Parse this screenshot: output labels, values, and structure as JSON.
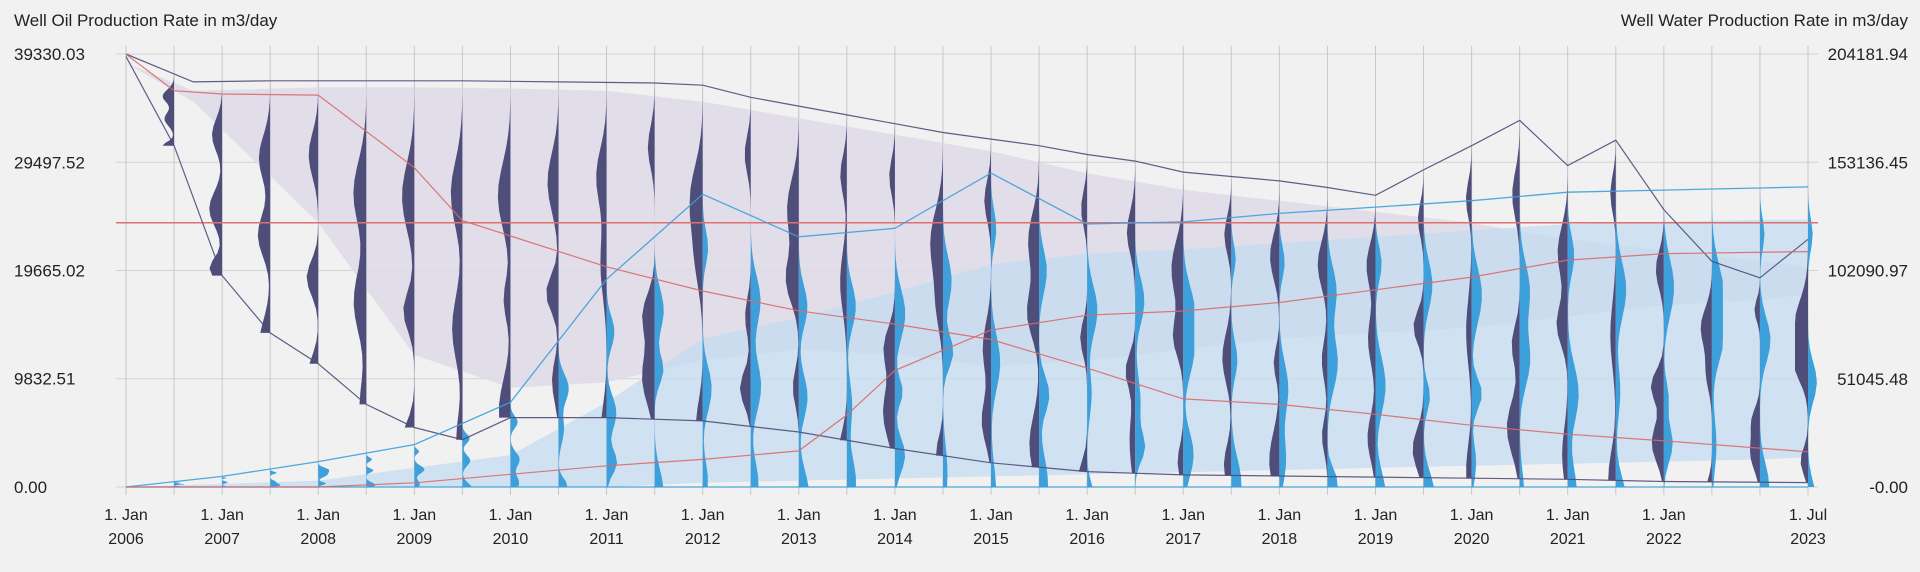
{
  "chart_data": {
    "type": "line",
    "left_axis": {
      "title": "Well Oil Production Rate in m3/day",
      "ticks": [
        0,
        9832.51,
        19665.02,
        29497.52,
        39330.03
      ],
      "tick_labels": [
        "0.00",
        "9832.51",
        "19665.02",
        "29497.52",
        "39330.03"
      ],
      "range": [
        0,
        39330.03
      ]
    },
    "right_axis": {
      "title": "Well Water Production Rate in m3/day",
      "ticks": [
        0,
        51045.48,
        102090.97,
        153136.45,
        204181.94
      ],
      "tick_labels": [
        "-0.00",
        "51045.48",
        "102090.97",
        "153136.45",
        "204181.94"
      ],
      "range": [
        0,
        204181.94
      ]
    },
    "x_axis": {
      "range": [
        2006.0,
        2023.5
      ],
      "ticks": [
        {
          "x": 2006,
          "line1": "1. Jan",
          "line2": "2006"
        },
        {
          "x": 2007,
          "line1": "1. Jan",
          "line2": "2007"
        },
        {
          "x": 2008,
          "line1": "1. Jan",
          "line2": "2008"
        },
        {
          "x": 2009,
          "line1": "1. Jan",
          "line2": "2009"
        },
        {
          "x": 2010,
          "line1": "1. Jan",
          "line2": "2010"
        },
        {
          "x": 2011,
          "line1": "1. Jan",
          "line2": "2011"
        },
        {
          "x": 2012,
          "line1": "1. Jan",
          "line2": "2012"
        },
        {
          "x": 2013,
          "line1": "1. Jan",
          "line2": "2013"
        },
        {
          "x": 2014,
          "line1": "1. Jan",
          "line2": "2014"
        },
        {
          "x": 2015,
          "line1": "1. Jan",
          "line2": "2015"
        },
        {
          "x": 2016,
          "line1": "1. Jan",
          "line2": "2016"
        },
        {
          "x": 2017,
          "line1": "1. Jan",
          "line2": "2017"
        },
        {
          "x": 2018,
          "line1": "1. Jan",
          "line2": "2018"
        },
        {
          "x": 2019,
          "line1": "1. Jan",
          "line2": "2019"
        },
        {
          "x": 2020,
          "line1": "1. Jan",
          "line2": "2020"
        },
        {
          "x": 2021,
          "line1": "1. Jan",
          "line2": "2021"
        },
        {
          "x": 2022,
          "line1": "1. Jan",
          "line2": "2022"
        },
        {
          "x": 2023.5,
          "line1": "1. Jul",
          "line2": "2023"
        }
      ]
    },
    "grid": true,
    "reference_line": {
      "y": 24000,
      "axis": "left",
      "color": "#e07070"
    },
    "colors": {
      "oil": "#4f4d7a",
      "oil_band": "#dedbe8",
      "water": "#3da0da",
      "water_band": "#c4dbf0",
      "median": "#d96a6a"
    },
    "series": [
      {
        "axis": "left",
        "kind": "oil_upper",
        "x": [
          2006,
          2006.7,
          2007.5,
          2008.5,
          2009.5,
          2010.5,
          2011.5,
          2012,
          2012.5,
          2013,
          2013.5,
          2014,
          2014.5,
          2015,
          2015.5,
          2016,
          2016.5,
          2017,
          2017.5,
          2018,
          2018.5,
          2019,
          2019.5,
          2020,
          2020.5,
          2021,
          2021.5,
          2022,
          2022.5,
          2023,
          2023.5
        ],
        "y": [
          39330,
          36800,
          36900,
          36900,
          36900,
          36800,
          36700,
          36500,
          35400,
          34600,
          33800,
          33000,
          32200,
          31600,
          31000,
          30200,
          29600,
          28600,
          28200,
          27800,
          27200,
          26500,
          28800,
          31000,
          33300,
          29200,
          31500,
          25200,
          20500,
          19000,
          22500
        ]
      },
      {
        "axis": "left",
        "kind": "oil_lower",
        "x": [
          2006,
          2006.5,
          2007,
          2007.5,
          2008,
          2008.5,
          2009,
          2009.5,
          2010,
          2011,
          2012,
          2013,
          2014,
          2015,
          2016,
          2017,
          2018,
          2019,
          2020,
          2021,
          2022,
          2023.5
        ],
        "y": [
          39100,
          31000,
          19200,
          14000,
          11200,
          7500,
          5400,
          4300,
          6300,
          6300,
          6000,
          5000,
          3500,
          2200,
          1400,
          1100,
          1000,
          900,
          800,
          700,
          500,
          400
        ]
      },
      {
        "axis": "left",
        "kind": "oil_median",
        "x": [
          2006,
          2006.5,
          2007,
          2008,
          2009,
          2009.5,
          2010,
          2011,
          2012,
          2013,
          2014,
          2015,
          2016,
          2017,
          2018,
          2019,
          2020,
          2021,
          2022,
          2023.5
        ],
        "y": [
          39300,
          36000,
          35700,
          35600,
          29000,
          24200,
          22800,
          20000,
          17800,
          16000,
          14800,
          13400,
          10800,
          8000,
          7500,
          6600,
          5600,
          4800,
          4200,
          3200
        ]
      },
      {
        "axis": "right",
        "kind": "water_upper",
        "x": [
          2006,
          2007,
          2008,
          2009,
          2010,
          2011,
          2012,
          2013,
          2014,
          2015,
          2016,
          2017,
          2018,
          2019,
          2020,
          2021,
          2022,
          2022.5,
          2023,
          2023.5
        ],
        "y": [
          0,
          5000,
          12000,
          20000,
          40000,
          98000,
          138000,
          118000,
          122000,
          148000,
          124000,
          125000,
          129000,
          132000,
          135000,
          139000,
          140000,
          140500,
          141000,
          141500
        ]
      },
      {
        "axis": "right",
        "kind": "water_lower",
        "x": [
          2006,
          2008,
          2010,
          2012,
          2014,
          2016,
          2018,
          2020,
          2023.5
        ],
        "y": [
          0,
          0,
          0,
          0,
          0,
          0,
          0,
          0,
          0
        ]
      },
      {
        "axis": "right",
        "kind": "water_median",
        "x": [
          2006,
          2008,
          2009,
          2010,
          2011,
          2012,
          2013,
          2013.5,
          2014,
          2015,
          2016,
          2017,
          2018,
          2019,
          2020,
          2021,
          2022,
          2023.5
        ],
        "y": [
          0,
          0,
          2000,
          6000,
          10000,
          13000,
          17000,
          34000,
          55000,
          74000,
          81000,
          83000,
          87000,
          93000,
          99000,
          107000,
          110000,
          111000
        ]
      }
    ],
    "band_polygons": {
      "oil": {
        "x": [
          2006,
          2006.7,
          2008,
          2009,
          2010,
          2011,
          2012,
          2013,
          2014,
          2015,
          2016,
          2017,
          2018,
          2019,
          2020,
          2021,
          2022,
          2023,
          2023.5
        ],
        "upper": [
          38500,
          36000,
          36300,
          36300,
          36200,
          36000,
          35000,
          33500,
          32000,
          30500,
          28500,
          27000,
          26000,
          25000,
          24000,
          22500,
          21500,
          20500,
          20000
        ],
        "lower": [
          38500,
          35000,
          24000,
          12000,
          9000,
          9500,
          11500,
          12500,
          12000,
          11000,
          11500,
          12500,
          13500,
          14000,
          14500,
          15500,
          16500,
          17000,
          17500
        ]
      },
      "water": {
        "x": [
          2006,
          2008,
          2010,
          2011,
          2012,
          2013,
          2014,
          2015,
          2016,
          2017,
          2018,
          2019,
          2020,
          2021,
          2022,
          2023,
          2023.5
        ],
        "upper": [
          0,
          3000,
          15000,
          40000,
          70000,
          80000,
          92000,
          105000,
          110000,
          112000,
          115000,
          118000,
          121000,
          124000,
          125000,
          126000,
          126000
        ],
        "lower": [
          0,
          0,
          0,
          0,
          2000,
          3000,
          4000,
          5000,
          6000,
          7000,
          8000,
          9000,
          10000,
          11000,
          12000,
          13000,
          14000
        ]
      }
    },
    "violins": {
      "oil_x": [
        2006,
        2006.5,
        2007,
        2007.5,
        2008,
        2008.5,
        2009,
        2009.5,
        2010,
        2010.5,
        2011,
        2011.5,
        2012,
        2012.5,
        2013,
        2013.5,
        2014,
        2014.5,
        2015,
        2015.5,
        2016,
        2016.5,
        2017,
        2017.5,
        2018,
        2018.5,
        2019,
        2019.5,
        2020,
        2020.5,
        2021,
        2021.5,
        2022,
        2022.5,
        2023,
        2023.5
      ],
      "water_x": [
        2006,
        2006.5,
        2007,
        2007.5,
        2008,
        2008.5,
        2009,
        2009.5,
        2010,
        2010.5,
        2011,
        2011.5,
        2012,
        2012.5,
        2013,
        2013.5,
        2014,
        2014.5,
        2015,
        2015.5,
        2016,
        2016.5,
        2017,
        2017.5,
        2018,
        2018.5,
        2019,
        2019.5,
        2020,
        2020.5,
        2021,
        2021.5,
        2022,
        2022.5,
        2023,
        2023.5
      ]
    }
  }
}
